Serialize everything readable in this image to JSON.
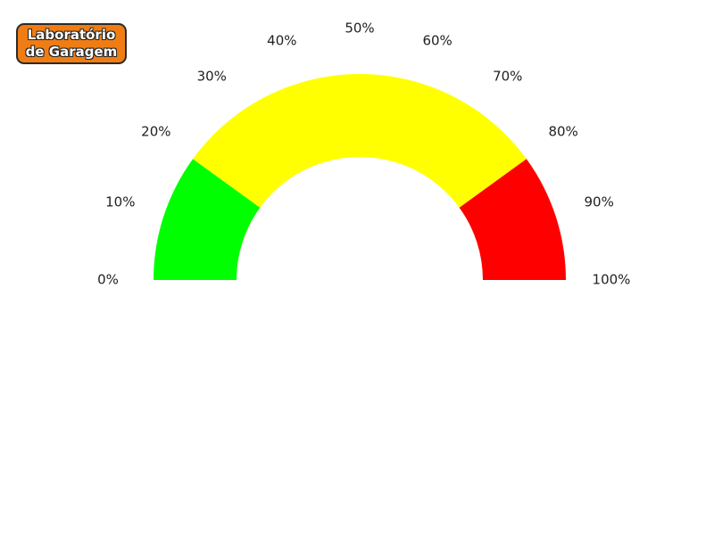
{
  "logo": {
    "line1": "Laboratório",
    "line2": "de Garagem",
    "color": "#f07d14"
  },
  "chart_data": {
    "type": "gauge",
    "min": 0,
    "max": 100,
    "unit": "%",
    "tick_labels": [
      "0%",
      "10%",
      "20%",
      "30%",
      "40%",
      "50%",
      "60%",
      "70%",
      "80%",
      "90%",
      "100%"
    ],
    "bands": [
      {
        "from": 0,
        "to": 20,
        "color": "#00ff00"
      },
      {
        "from": 20,
        "to": 80,
        "color": "#ffff00"
      },
      {
        "from": 80,
        "to": 100,
        "color": "#ff0000"
      }
    ]
  }
}
